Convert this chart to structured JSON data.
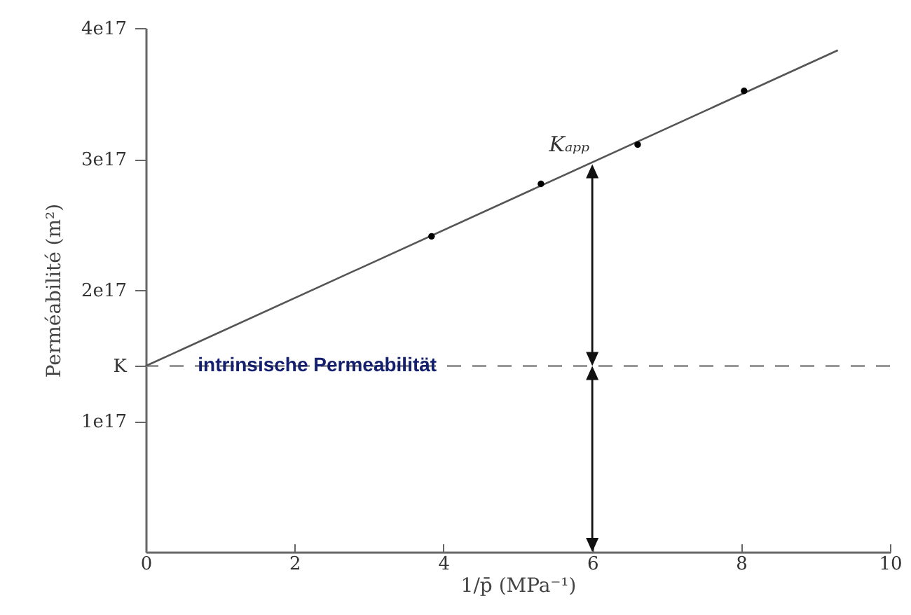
{
  "chart_data": {
    "type": "scatter",
    "xlabel": "1/p̄ (MPa⁻¹)",
    "ylabel": "Perméabilité (m²)",
    "xlim": [
      0,
      10
    ],
    "xticks": [
      0,
      2,
      4,
      6,
      8,
      10
    ],
    "ylim": [
      0,
      4e+17
    ],
    "yticks": [
      {
        "value": 1e+17,
        "label": "1e17"
      },
      {
        "value": 1.42e+17,
        "label": "K"
      },
      {
        "value": 2e+17,
        "label": "2e17"
      },
      {
        "value": 3e+17,
        "label": "3e17"
      },
      {
        "value": 4e+17,
        "label": "4e17"
      }
    ],
    "grid": false,
    "series": [
      {
        "type": "line",
        "color": "#555555",
        "x": [
          0,
          9.3
        ],
        "values": [
          1.42e+17,
          3.83e+17
        ],
        "line_style": "solid"
      },
      {
        "color": "#000000",
        "marker": "circle",
        "x": [
          3.84,
          5.31,
          6.61,
          8.04
        ],
        "values": [
          2.41e+17,
          2.81e+17,
          3.11e+17,
          3.52e+17
        ]
      }
    ],
    "ref_lines": [
      {
        "axis": "y",
        "value": 1.42e+17,
        "label": "intrinsische Permeabilität",
        "color": "#999999",
        "line_style": "dashed"
      }
    ],
    "annotations": [
      {
        "text": "Kₐₚₚ",
        "x": 6,
        "y": 2.96e+17
      }
    ]
  }
}
